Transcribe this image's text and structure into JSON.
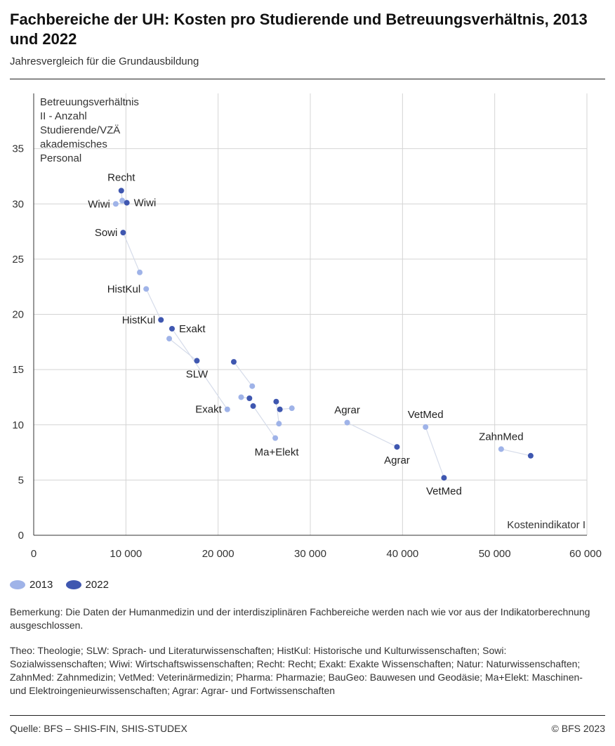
{
  "title": "Fachbereiche der UH: Kosten pro Studierende und Betreuungsverhältnis, 2013 und 2022",
  "subtitle": "Jahresvergleich für die Grundausbildung",
  "legend": [
    {
      "label": "2013",
      "color": "#9fb3e8"
    },
    {
      "label": "2022",
      "color": "#3f57b0"
    }
  ],
  "chart_data": {
    "type": "scatter",
    "ylabel": "Betreuungsverhältnis II - Anzahl Studierende/VZÄ akademisches Personal",
    "ylabel_lines": [
      "Betreuungsverhältnis",
      "II - Anzahl",
      "Studierende/VZÄ",
      "akademisches",
      "Personal"
    ],
    "xlabel": "Kostenindikator I",
    "xlim": [
      0,
      60000
    ],
    "ylim": [
      0,
      40
    ],
    "xticks": [
      0,
      10000,
      20000,
      30000,
      40000,
      50000,
      60000
    ],
    "xtick_labels": [
      "0",
      "10 000",
      "20 000",
      "30 000",
      "40 000",
      "50 000",
      "60 000"
    ],
    "yticks": [
      0,
      5,
      10,
      15,
      20,
      25,
      30,
      35
    ],
    "ytick_labels": [
      "0",
      "5",
      "10",
      "15",
      "20",
      "25",
      "30",
      "35"
    ],
    "grid": true,
    "series": [
      {
        "name": "2013",
        "color": "#9fb3e8"
      },
      {
        "name": "2022",
        "color": "#3f57b0"
      }
    ],
    "fachbereiche": [
      {
        "name": "Recht",
        "p2013": [
          9600,
          30.3
        ],
        "p2022": [
          9500,
          31.2
        ],
        "label2013": "",
        "label2022": "Recht"
      },
      {
        "name": "Wiwi",
        "p2013": [
          8900,
          30.0
        ],
        "p2022": [
          10100,
          30.1
        ],
        "label2013": "Wiwi",
        "label2022": "Wiwi"
      },
      {
        "name": "Sowi",
        "p2013": [
          11500,
          23.8
        ],
        "p2022": [
          9700,
          27.4
        ],
        "label2013": "",
        "label2022": "Sowi"
      },
      {
        "name": "HistKul",
        "p2013": [
          12200,
          22.3
        ],
        "p2022": [
          13800,
          19.5
        ],
        "label2013": "HistKul",
        "label2022": "HistKul"
      },
      {
        "name": "SLW",
        "p2013": [
          14700,
          17.8
        ],
        "p2022": [
          17700,
          15.8
        ],
        "label2013": "",
        "label2022": "SLW"
      },
      {
        "name": "Exakt",
        "p2013": [
          21000,
          11.4
        ],
        "p2022": [
          15000,
          18.7
        ],
        "label2013": "Exakt",
        "label2022": "Exakt"
      },
      {
        "name": "Natur",
        "p2013": [
          22500,
          12.5
        ],
        "p2022": [
          23400,
          12.4
        ],
        "label2013": "",
        "label2022": ""
      },
      {
        "name": "Pharma",
        "p2013": [
          23700,
          13.5
        ],
        "p2022": [
          21700,
          15.7
        ],
        "label2013": "",
        "label2022": ""
      },
      {
        "name": "BauGeo",
        "p2013": [
          28000,
          11.5
        ],
        "p2022": [
          26700,
          11.4
        ],
        "label2013": "",
        "label2022": ""
      },
      {
        "name": "Theo",
        "p2013": [
          26600,
          10.1
        ],
        "p2022": [
          26300,
          12.1
        ],
        "label2013": "",
        "label2022": ""
      },
      {
        "name": "Ma+Elekt",
        "p2013": [
          26200,
          8.8
        ],
        "p2022": [
          23800,
          11.7
        ],
        "label2013": "Ma+Elekt",
        "label2022": ""
      },
      {
        "name": "Agrar",
        "p2013": [
          34000,
          10.2
        ],
        "p2022": [
          39400,
          8.0
        ],
        "label2013": "Agrar",
        "label2022": "Agrar"
      },
      {
        "name": "VetMed",
        "p2013": [
          42500,
          9.8
        ],
        "p2022": [
          44500,
          5.2
        ],
        "label2013": "VetMed",
        "label2022": "VetMed"
      },
      {
        "name": "ZahnMed",
        "p2013": [
          50700,
          7.8
        ],
        "p2022": [
          53900,
          7.2
        ],
        "label2013": "ZahnMed",
        "label2022": ""
      }
    ]
  },
  "notes": {
    "remark": "Bemerkung: Die Daten der Humanmedizin und der interdisziplinären Fachbereiche werden nach wie vor aus der Indikatorberechnung ausgeschlossen.",
    "abbreviations": "Theo: Theologie; SLW: Sprach- und Literaturwissenschaften; HistKul: Historische und Kulturwissenschaften; Sowi: Sozialwissenschaften; Wiwi: Wirtschaftswissenschaften; Recht: Recht; Exakt: Exakte Wissenschaften; Natur: Naturwissenschaften; ZahnMed: Zahnmedizin; VetMed: Veterinärmedizin; Pharma: Pharmazie; BauGeo: Bauwesen und Geodäsie; Ma+Elekt: Maschinen- und Elektroingenieurwissenschaften; Agrar: Agrar- und Fortwissenschaften"
  },
  "footer": {
    "source": "Quelle: BFS – SHIS-FIN, SHIS-STUDEX",
    "copyright": "© BFS 2023"
  }
}
